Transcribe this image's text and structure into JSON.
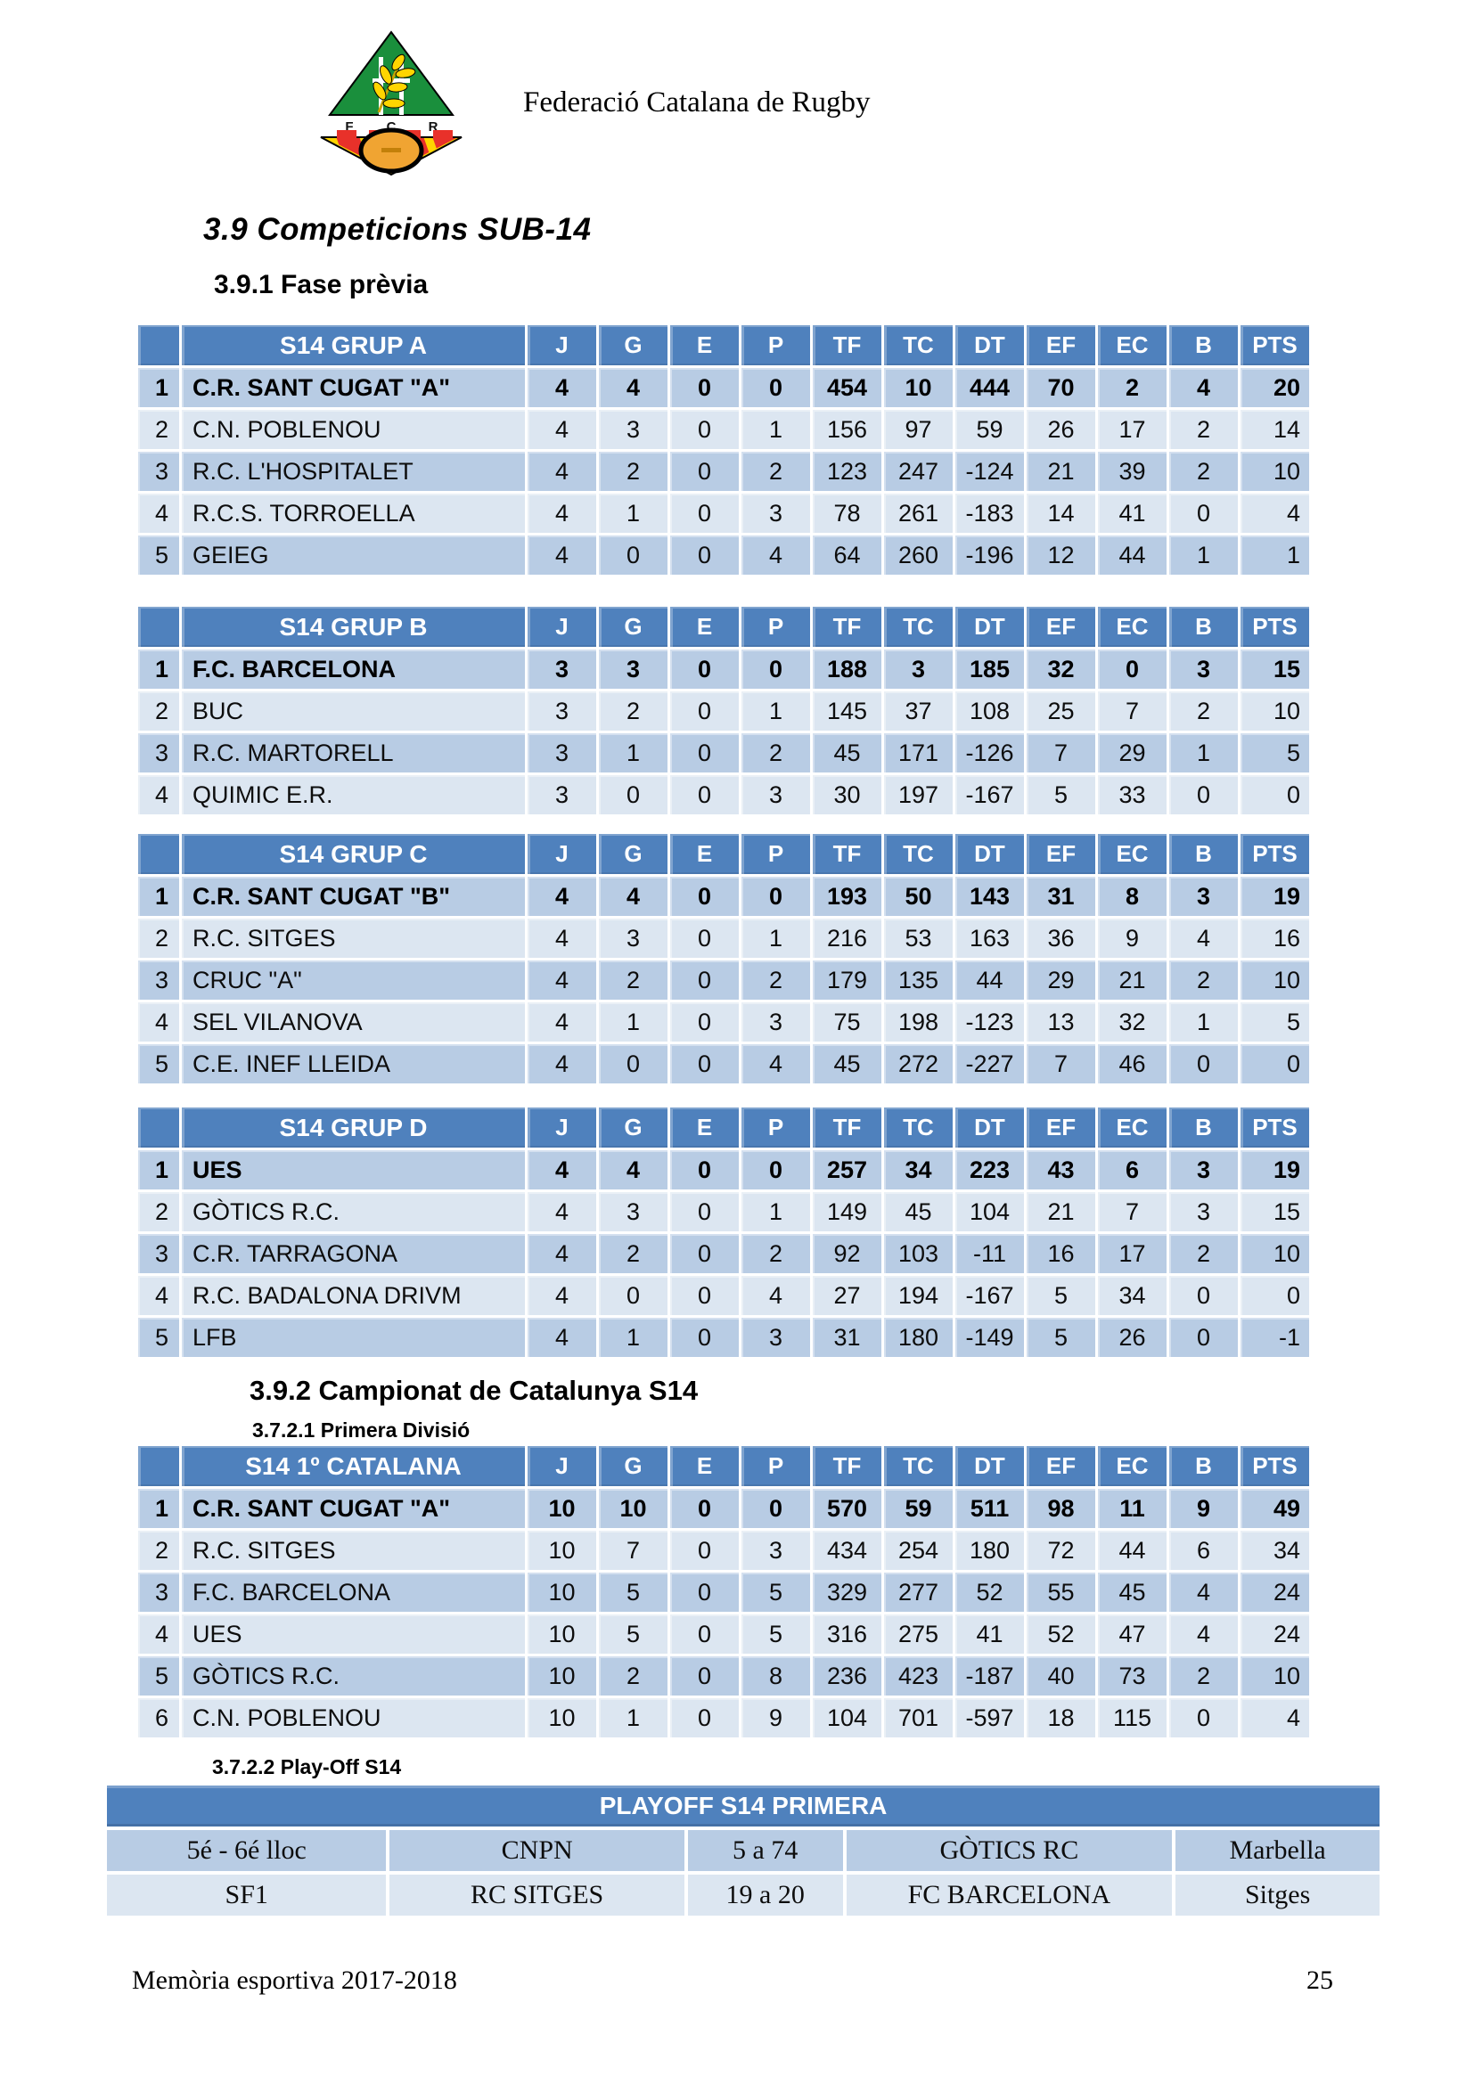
{
  "header": {
    "org_name": "Federació Catalana de Rugby",
    "logo_letters": [
      "F",
      "C",
      "R"
    ]
  },
  "sections": {
    "s39_title": "3.9 Competicions SUB-14",
    "s391_title": "3.9.1 Fase prèvia",
    "s392_title": "3.9.2 Campionat de Catalunya S14",
    "s3721_title": "3.7.2.1 Primera Divisió",
    "s3722_title": "3.7.2.2 Play-Off S14"
  },
  "columns": [
    "J",
    "G",
    "E",
    "P",
    "TF",
    "TC",
    "DT",
    "EF",
    "EC",
    "B",
    "PTS"
  ],
  "tables": [
    {
      "key": "grup-a",
      "title": "S14 GRUP A",
      "rows": [
        {
          "pos": 1,
          "team": "C.R. SANT CUGAT \"A\"",
          "vals": [
            4,
            4,
            0,
            0,
            454,
            10,
            444,
            70,
            2,
            4,
            20
          ],
          "bold": true
        },
        {
          "pos": 2,
          "team": "C.N. POBLENOU",
          "vals": [
            4,
            3,
            0,
            1,
            156,
            97,
            59,
            26,
            17,
            2,
            14
          ],
          "bold": false
        },
        {
          "pos": 3,
          "team": "R.C. L'HOSPITALET",
          "vals": [
            4,
            2,
            0,
            2,
            123,
            247,
            -124,
            21,
            39,
            2,
            10
          ],
          "bold": false
        },
        {
          "pos": 4,
          "team": "R.C.S. TORROELLA",
          "vals": [
            4,
            1,
            0,
            3,
            78,
            261,
            -183,
            14,
            41,
            0,
            4
          ],
          "bold": false
        },
        {
          "pos": 5,
          "team": "GEIEG",
          "vals": [
            4,
            0,
            0,
            4,
            64,
            260,
            -196,
            12,
            44,
            1,
            1
          ],
          "bold": false
        }
      ]
    },
    {
      "key": "grup-b",
      "title": "S14 GRUP B",
      "rows": [
        {
          "pos": 1,
          "team": "F.C. BARCELONA",
          "vals": [
            3,
            3,
            0,
            0,
            188,
            3,
            185,
            32,
            0,
            3,
            15
          ],
          "bold": true
        },
        {
          "pos": 2,
          "team": "BUC",
          "vals": [
            3,
            2,
            0,
            1,
            145,
            37,
            108,
            25,
            7,
            2,
            10
          ],
          "bold": false
        },
        {
          "pos": 3,
          "team": "R.C. MARTORELL",
          "vals": [
            3,
            1,
            0,
            2,
            45,
            171,
            -126,
            7,
            29,
            1,
            5
          ],
          "bold": false
        },
        {
          "pos": 4,
          "team": "QUIMIC E.R.",
          "vals": [
            3,
            0,
            0,
            3,
            30,
            197,
            -167,
            5,
            33,
            0,
            0
          ],
          "bold": false
        }
      ]
    },
    {
      "key": "grup-c",
      "title": "S14 GRUP C",
      "rows": [
        {
          "pos": 1,
          "team": "C.R. SANT CUGAT \"B\"",
          "vals": [
            4,
            4,
            0,
            0,
            193,
            50,
            143,
            31,
            8,
            3,
            19
          ],
          "bold": true
        },
        {
          "pos": 2,
          "team": "R.C. SITGES",
          "vals": [
            4,
            3,
            0,
            1,
            216,
            53,
            163,
            36,
            9,
            4,
            16
          ],
          "bold": false
        },
        {
          "pos": 3,
          "team": "CRUC \"A\"",
          "vals": [
            4,
            2,
            0,
            2,
            179,
            135,
            44,
            29,
            21,
            2,
            10
          ],
          "bold": false
        },
        {
          "pos": 4,
          "team": "SEL VILANOVA",
          "vals": [
            4,
            1,
            0,
            3,
            75,
            198,
            -123,
            13,
            32,
            1,
            5
          ],
          "bold": false
        },
        {
          "pos": 5,
          "team": "C.E. INEF LLEIDA",
          "vals": [
            4,
            0,
            0,
            4,
            45,
            272,
            -227,
            7,
            46,
            0,
            0
          ],
          "bold": false
        }
      ]
    },
    {
      "key": "grup-d",
      "title": "S14 GRUP D",
      "rows": [
        {
          "pos": 1,
          "team": "UES",
          "vals": [
            4,
            4,
            0,
            0,
            257,
            34,
            223,
            43,
            6,
            3,
            19
          ],
          "bold": true
        },
        {
          "pos": 2,
          "team": "GÒTICS R.C.",
          "vals": [
            4,
            3,
            0,
            1,
            149,
            45,
            104,
            21,
            7,
            3,
            15
          ],
          "bold": false
        },
        {
          "pos": 3,
          "team": "C.R. TARRAGONA",
          "vals": [
            4,
            2,
            0,
            2,
            92,
            103,
            -11,
            16,
            17,
            2,
            10
          ],
          "bold": false
        },
        {
          "pos": 4,
          "team": "R.C. BADALONA DRIVM",
          "vals": [
            4,
            0,
            0,
            4,
            27,
            194,
            -167,
            5,
            34,
            0,
            0
          ],
          "bold": false
        },
        {
          "pos": 5,
          "team": "LFB",
          "vals": [
            4,
            1,
            0,
            3,
            31,
            180,
            -149,
            5,
            26,
            0,
            -1
          ],
          "bold": false
        }
      ]
    },
    {
      "key": "primera-catalana",
      "title": "S14 1º CATALANA",
      "rows": [
        {
          "pos": 1,
          "team": "C.R. SANT CUGAT \"A\"",
          "vals": [
            10,
            10,
            0,
            0,
            570,
            59,
            511,
            98,
            11,
            9,
            49
          ],
          "bold": true
        },
        {
          "pos": 2,
          "team": "R.C. SITGES",
          "vals": [
            10,
            7,
            0,
            3,
            434,
            254,
            180,
            72,
            44,
            6,
            34
          ],
          "bold": false
        },
        {
          "pos": 3,
          "team": "F.C. BARCELONA",
          "vals": [
            10,
            5,
            0,
            5,
            329,
            277,
            52,
            55,
            45,
            4,
            24
          ],
          "bold": false
        },
        {
          "pos": 4,
          "team": "UES",
          "vals": [
            10,
            5,
            0,
            5,
            316,
            275,
            41,
            52,
            47,
            4,
            24
          ],
          "bold": false
        },
        {
          "pos": 5,
          "team": "GÒTICS R.C.",
          "vals": [
            10,
            2,
            0,
            8,
            236,
            423,
            -187,
            40,
            73,
            2,
            10
          ],
          "bold": false
        },
        {
          "pos": 6,
          "team": "C.N. POBLENOU",
          "vals": [
            10,
            1,
            0,
            9,
            104,
            701,
            -597,
            18,
            115,
            0,
            4
          ],
          "bold": false
        }
      ]
    }
  ],
  "playoff": {
    "title": "PLAYOFF S14 PRIMERA",
    "rows": [
      [
        "5é - 6é lloc",
        "CNPN",
        "5 a 74",
        "GÒTICS RC",
        "Marbella"
      ],
      [
        "SF1",
        "RC SITGES",
        "19 a 20",
        "FC BARCELONA",
        "Sitges"
      ]
    ]
  },
  "footer": {
    "left": "Memòria esportiva 2017-2018",
    "page_number": "25"
  },
  "colors": {
    "header_blue": "#4f81bd",
    "row_dark": "#b8cce4",
    "row_light": "#dce6f1",
    "logo_green": "#1a8f3c",
    "logo_red": "#e8312a",
    "logo_yellow": "#ffd500",
    "logo_ball": "#f0a432"
  }
}
